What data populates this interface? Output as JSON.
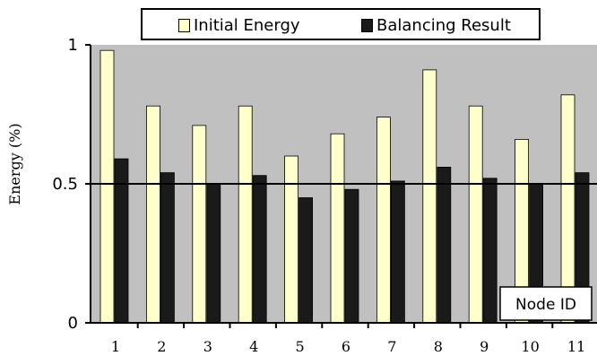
{
  "chart_data": {
    "type": "bar",
    "categories": [
      "1",
      "2",
      "3",
      "4",
      "5",
      "6",
      "7",
      "8",
      "9",
      "10",
      "11"
    ],
    "series": [
      {
        "name": "Initial Energy",
        "color": "#ffffcc",
        "values": [
          0.98,
          0.78,
          0.71,
          0.78,
          0.6,
          0.68,
          0.74,
          0.91,
          0.78,
          0.66,
          0.82
        ]
      },
      {
        "name": "Balancing Result",
        "color": "#1a1a1a",
        "values": [
          0.59,
          0.54,
          0.5,
          0.53,
          0.45,
          0.48,
          0.51,
          0.56,
          0.52,
          0.5,
          0.54
        ]
      }
    ],
    "ylabel": "Energy (%)",
    "xlabel": "Node ID",
    "yticks": [
      "0",
      "0.5",
      "1"
    ],
    "ylim": [
      0,
      1
    ],
    "grid": "reference line at 0.5",
    "legend_position": "top",
    "background_color": "#c0c0c0"
  }
}
